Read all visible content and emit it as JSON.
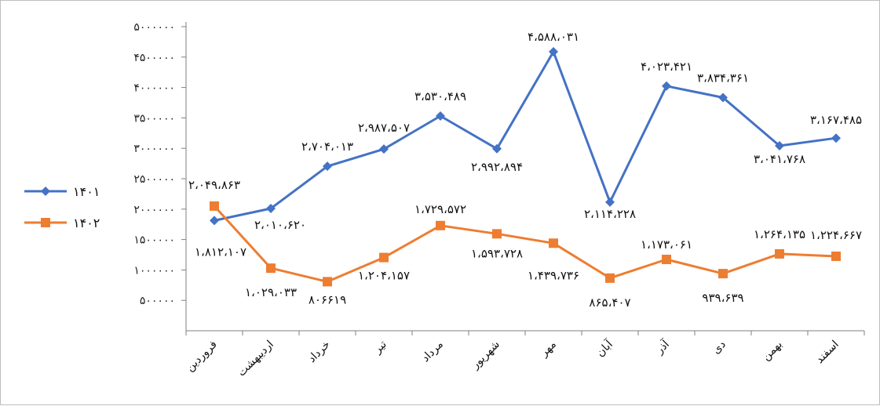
{
  "chart_data": {
    "type": "line",
    "categories": [
      "فروردین",
      "اردیبهشت",
      "خرداد",
      "تیر",
      "مرداد",
      "شهریور",
      "مهر",
      "آبان",
      "آذر",
      "دی",
      "بهمن",
      "اسفند"
    ],
    "series": [
      {
        "name": "۱۴۰۱",
        "color": "#4472c4",
        "marker": "diamond",
        "values": [
          1812107,
          2010620,
          2704013,
          2987507,
          3530489,
          2992894,
          4588031,
          2114228,
          4023421,
          3834361,
          3041768,
          3167485
        ],
        "labels": [
          "۱،۸۱۲،۱۰۷",
          "۲،۰۱۰،۶۲۰",
          "۲،۷۰۴،۰۱۳",
          "۲،۹۸۷،۵۰۷",
          "۳،۵۳۰،۴۸۹",
          "۲،۹۹۲،۸۹۴",
          "۴،۵۸۸،۰۳۱",
          "۲،۱۱۴،۲۲۸",
          "۴،۰۲۳،۴۲۱",
          "۳،۸۳۴،۳۶۱",
          "۳،۰۴۱،۷۶۸",
          "۳،۱۶۷،۴۸۵"
        ]
      },
      {
        "name": "۱۴۰۲",
        "color": "#ed7d31",
        "marker": "square",
        "values": [
          2049863,
          1029033,
          806619,
          1204157,
          1729572,
          1593728,
          1439736,
          865407,
          1173061,
          939639,
          1264135,
          1224667
        ],
        "labels": [
          "۲،۰۴۹،۸۶۳",
          "۱،۰۲۹،۰۳۳",
          "۸۰۶۶۱۹",
          "۱،۲۰۴،۱۵۷",
          "۱،۷۲۹،۵۷۲",
          "۱،۵۹۳،۷۲۸",
          "۱،۴۳۹،۷۳۶",
          "۸۶۵،۴۰۷",
          "۱،۱۷۳،۰۶۱",
          "۹۳۹،۶۳۹",
          "۱،۲۶۴،۱۳۵",
          "۱،۲۲۴،۶۶۷"
        ]
      }
    ],
    "ylim": [
      0,
      5000000
    ],
    "y_ticks": [
      500000,
      1000000,
      1500000,
      2000000,
      2500000,
      3000000,
      3500000,
      4000000,
      4500000,
      5000000
    ],
    "y_tick_labels": [
      "۵۰۰۰۰۰",
      "۱۰۰۰۰۰۰",
      "۱۵۰۰۰۰۰",
      "۲۰۰۰۰۰۰",
      "۲۵۰۰۰۰۰",
      "۳۰۰۰۰۰۰",
      "۳۵۰۰۰۰۰",
      "۴۰۰۰۰۰۰",
      "۴۵۰۰۰۰۰",
      "۵۰۰۰۰۰۰"
    ],
    "grid": false,
    "legend_position": "left",
    "axis_color": "#7f7f7f"
  }
}
